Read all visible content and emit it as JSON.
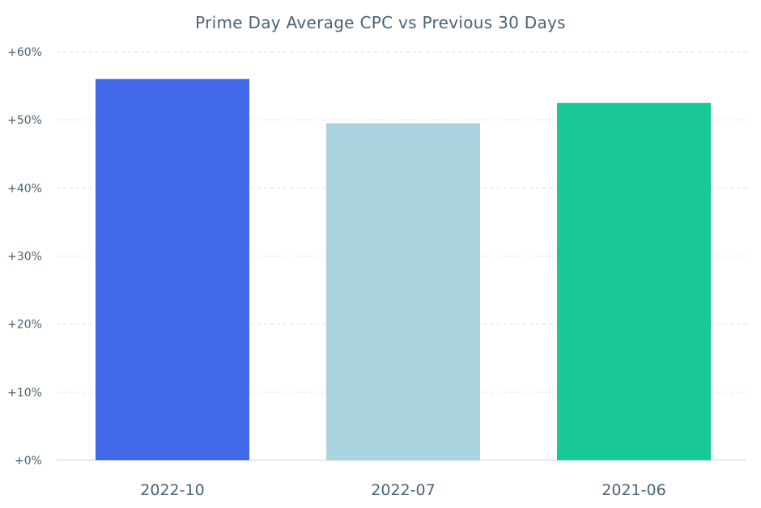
{
  "chart_data": {
    "type": "bar",
    "title": "Prime Day Average CPC vs Previous 30 Days",
    "xlabel": "",
    "ylabel": "",
    "categories": [
      "2022-10",
      "2022-07",
      "2021-06"
    ],
    "values": [
      56,
      49.5,
      52.5
    ],
    "bar_colors": [
      "#4169e8",
      "#a8d3df",
      "#19c995"
    ],
    "ylim": [
      0,
      60
    ],
    "yticks": [
      0,
      10,
      20,
      30,
      40,
      50,
      60
    ],
    "ytick_labels": [
      "+0%",
      "+10%",
      "+20%",
      "+30%",
      "+40%",
      "+50%",
      "+60%"
    ],
    "grid": true,
    "legend": "none"
  }
}
